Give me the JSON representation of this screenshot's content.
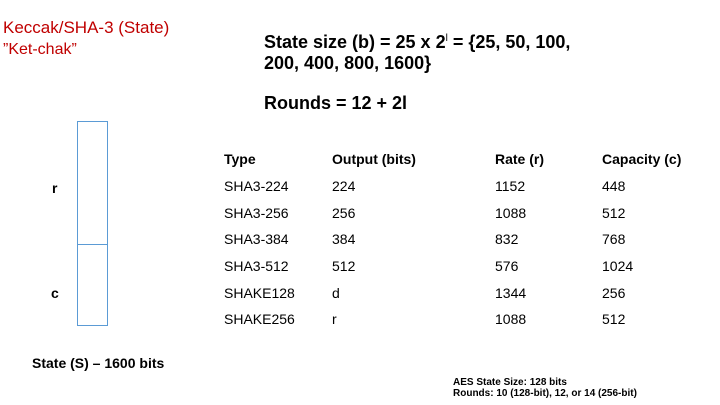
{
  "slide": {
    "title": "Keccak/SHA-3 (State)",
    "subtitle": "”Ket-chak”",
    "formula": {
      "prefix": "State size (b) =  25 x 2",
      "exponent": "l",
      "suffix": "  = {25, 50, 100,",
      "line2": "200, 400, 800, 1600}"
    },
    "rounds": "Rounds = 12 + 2l"
  },
  "diagram": {
    "label_r": "r",
    "label_c": "c",
    "caption": "State (S) – 1600 bits",
    "r_fraction": 0.6
  },
  "table": {
    "headers": [
      "Type",
      "Output (bits)",
      "Rate (r)",
      "Capacity (c)"
    ],
    "rows": [
      [
        "SHA3-224",
        "224",
        "1152",
        "448"
      ],
      [
        "SHA3-256",
        "256",
        "1088",
        "512"
      ],
      [
        "SHA3-384",
        "384",
        "832",
        "768"
      ],
      [
        "SHA3-512",
        "512",
        "576",
        "1024"
      ],
      [
        "SHAKE128",
        "d",
        "1344",
        "256"
      ],
      [
        "SHAKE256",
        "r",
        "1088",
        "512"
      ]
    ]
  },
  "note": {
    "line1": "AES State Size: 128 bits",
    "line2": "Rounds: 10 (128-bit), 12, or 14 (256-bit)"
  },
  "colors": {
    "title": "#c00000",
    "box_border": "#5b9bd5"
  }
}
